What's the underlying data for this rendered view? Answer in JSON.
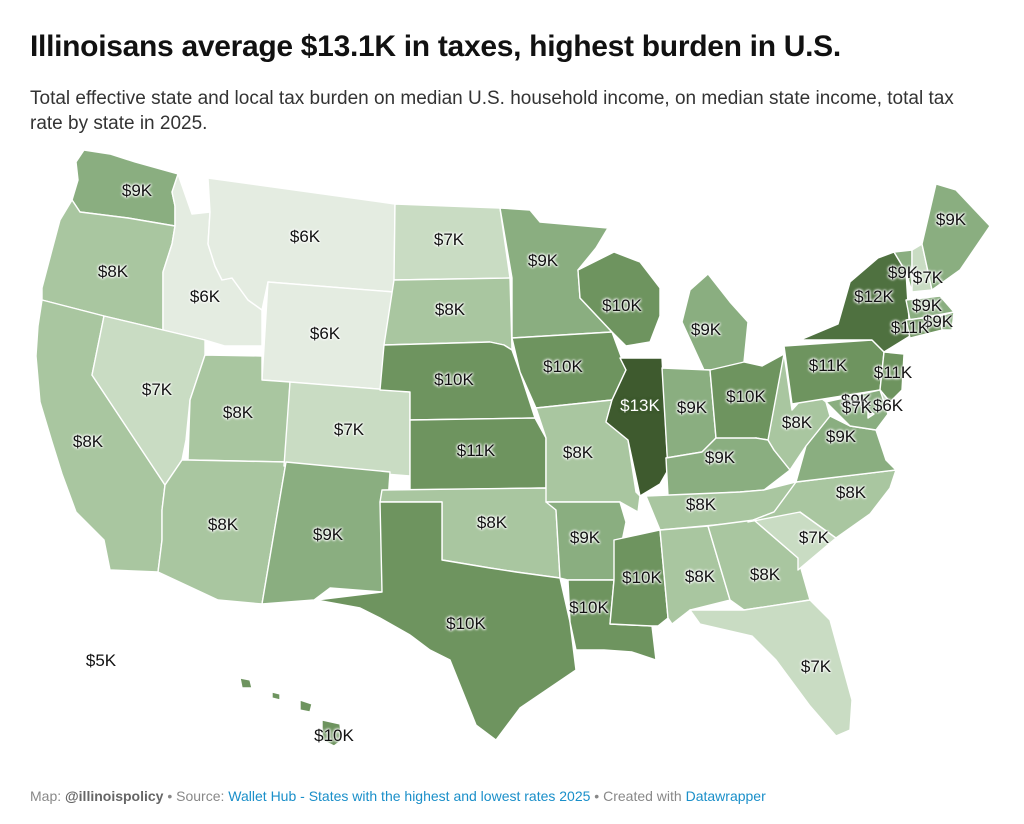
{
  "header": {
    "title": "Illinoisans average $13.1K in taxes, highest burden in U.S.",
    "subtitle": "Total effective state and local tax burden on median U.S. household income, on median state income, total tax rate by state in 2025."
  },
  "colors": {
    "scale": [
      "#e4ece1",
      "#c9dcc3",
      "#a9c6a0",
      "#8aae80",
      "#6e945f",
      "#4f7140",
      "#3e5a2e"
    ]
  },
  "states": [
    {
      "id": "WA",
      "label": "$9K",
      "value_k": 9
    },
    {
      "id": "OR",
      "label": "$8K",
      "value_k": 8
    },
    {
      "id": "CA",
      "label": "$8K",
      "value_k": 8
    },
    {
      "id": "ID",
      "label": "$6K",
      "value_k": 6
    },
    {
      "id": "NV",
      "label": "$7K",
      "value_k": 7
    },
    {
      "id": "MT",
      "label": "$6K",
      "value_k": 6
    },
    {
      "id": "WY",
      "label": "$6K",
      "value_k": 6
    },
    {
      "id": "UT",
      "label": "$8K",
      "value_k": 8
    },
    {
      "id": "AZ",
      "label": "$8K",
      "value_k": 8
    },
    {
      "id": "CO",
      "label": "$7K",
      "value_k": 7
    },
    {
      "id": "NM",
      "label": "$9K",
      "value_k": 9
    },
    {
      "id": "ND",
      "label": "$7K",
      "value_k": 7
    },
    {
      "id": "SD",
      "label": "$8K",
      "value_k": 8
    },
    {
      "id": "NE",
      "label": "$10K",
      "value_k": 10
    },
    {
      "id": "KS",
      "label": "$11K",
      "value_k": 11
    },
    {
      "id": "OK",
      "label": "$8K",
      "value_k": 8
    },
    {
      "id": "TX",
      "label": "$10K",
      "value_k": 10
    },
    {
      "id": "MN",
      "label": "$9K",
      "value_k": 9
    },
    {
      "id": "IA",
      "label": "$10K",
      "value_k": 10
    },
    {
      "id": "MO",
      "label": "$8K",
      "value_k": 8
    },
    {
      "id": "AR",
      "label": "$9K",
      "value_k": 9
    },
    {
      "id": "LA",
      "label": "$10K",
      "value_k": 10
    },
    {
      "id": "WI",
      "label": "$10K",
      "value_k": 10
    },
    {
      "id": "IL",
      "label": "$13K",
      "value_k": 13
    },
    {
      "id": "MI",
      "label": "$9K",
      "value_k": 9
    },
    {
      "id": "IN",
      "label": "$9K",
      "value_k": 9
    },
    {
      "id": "OH",
      "label": "$10K",
      "value_k": 10
    },
    {
      "id": "KY",
      "label": "$9K",
      "value_k": 9
    },
    {
      "id": "TN",
      "label": "$8K",
      "value_k": 8
    },
    {
      "id": "MS",
      "label": "$10K",
      "value_k": 10
    },
    {
      "id": "AL",
      "label": "$8K",
      "value_k": 8
    },
    {
      "id": "GA",
      "label": "$8K",
      "value_k": 8
    },
    {
      "id": "FL",
      "label": "$7K",
      "value_k": 7
    },
    {
      "id": "SC",
      "label": "$7K",
      "value_k": 7
    },
    {
      "id": "NC",
      "label": "$8K",
      "value_k": 8
    },
    {
      "id": "VA",
      "label": "$9K",
      "value_k": 9
    },
    {
      "id": "WV",
      "label": "$8K",
      "value_k": 8
    },
    {
      "id": "PA",
      "label": "$11K",
      "value_k": 11
    },
    {
      "id": "NY",
      "label": "$12K",
      "value_k": 12
    },
    {
      "id": "NJ",
      "label": "$11K",
      "value_k": 11
    },
    {
      "id": "MD",
      "label": "$9K",
      "value_k": 9
    },
    {
      "id": "DE",
      "label": "$7K",
      "value_k": 7
    },
    {
      "id": "DC",
      "label": "$6K",
      "value_k": 6
    },
    {
      "id": "VT",
      "label": "$9K",
      "value_k": 9
    },
    {
      "id": "NH",
      "label": "$7K",
      "value_k": 7
    },
    {
      "id": "MA",
      "label": "$9K",
      "value_k": 9
    },
    {
      "id": "RI",
      "label": "$9K",
      "value_k": 9
    },
    {
      "id": "CT",
      "label": "$11K",
      "value_k": 11
    },
    {
      "id": "ME",
      "label": "$9K",
      "value_k": 9
    },
    {
      "id": "AK",
      "label": "$5K",
      "value_k": 5
    },
    {
      "id": "HI",
      "label": "$10K",
      "value_k": 10
    }
  ],
  "footer": {
    "map_prefix": "Map: ",
    "map_credit": "@illinoispolicy",
    "source_prefix": " • Source: ",
    "source_link": "Wallet Hub - States with the highest and lowest rates 2025",
    "created_prefix": " • Created with ",
    "created_link": "Datawrapper"
  }
}
